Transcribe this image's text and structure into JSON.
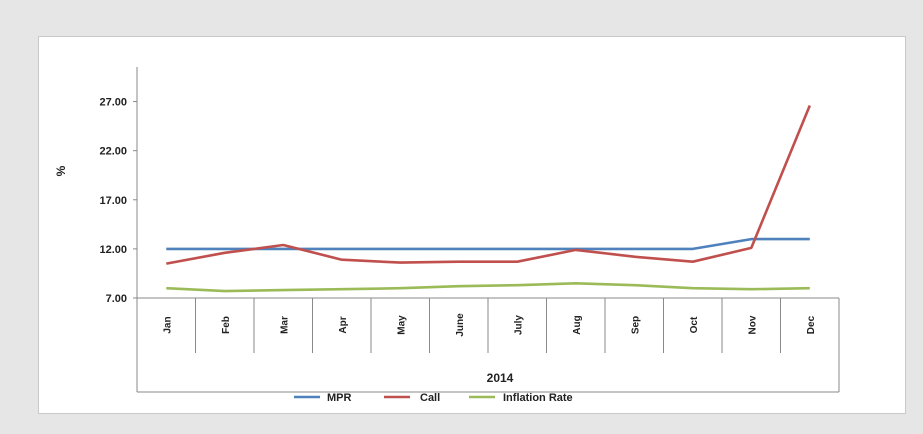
{
  "chart_data": {
    "type": "line",
    "title": "",
    "ylabel": "%",
    "xlabel": "2014",
    "categories": [
      "Jan",
      "Feb",
      "Mar",
      "Apr",
      "May",
      "June",
      "July",
      "Aug",
      "Sep",
      "Oct",
      "Nov",
      "Dec"
    ],
    "y_ticks": [
      "7.00",
      "12.00",
      "17.00",
      "22.00",
      "27.00"
    ],
    "ylim": [
      7,
      29.5
    ],
    "grid": false,
    "legend_position": "bottom",
    "series": [
      {
        "name": "MPR",
        "color": "#4f81bd",
        "values": [
          12,
          12,
          12,
          12,
          12,
          12,
          12,
          12,
          12,
          12,
          13,
          13
        ]
      },
      {
        "name": "Call",
        "color": "#c0504d",
        "values": [
          10.5,
          11.6,
          12.4,
          10.9,
          10.6,
          10.7,
          10.7,
          11.9,
          11.2,
          10.7,
          12.1,
          26.6
        ]
      },
      {
        "name": "Inflation Rate",
        "color": "#9bbb59",
        "values": [
          8.0,
          7.7,
          7.8,
          7.9,
          8.0,
          8.2,
          8.3,
          8.5,
          8.3,
          8.0,
          7.9,
          8.0
        ]
      }
    ]
  }
}
